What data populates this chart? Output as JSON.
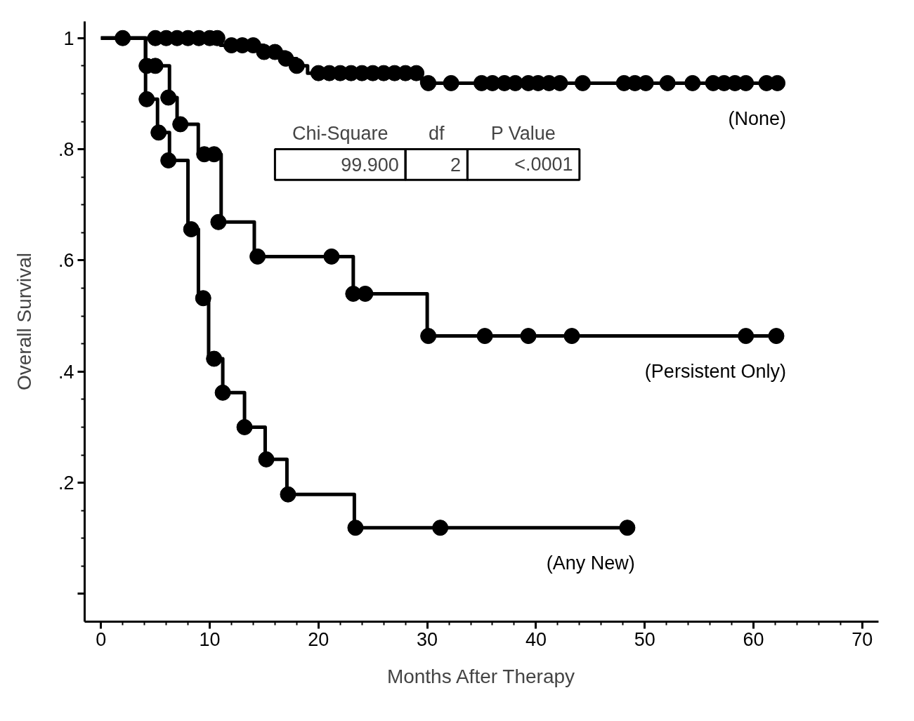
{
  "chart_data": {
    "type": "step",
    "xlabel": "Months After Therapy",
    "ylabel": "Overall Survival",
    "xlim": [
      -1.5,
      71.5
    ],
    "ylim": [
      -0.05,
      1.03
    ],
    "xticks": [
      0,
      10,
      20,
      30,
      40,
      50,
      60,
      70
    ],
    "yticks": [
      {
        "value": 0,
        "label": null
      },
      {
        "value": 0.2,
        "label": ".2"
      },
      {
        "value": 0.4,
        "label": ".4"
      },
      {
        "value": 0.6,
        "label": ".6"
      },
      {
        "value": 0.8,
        "label": ".8"
      },
      1
    ],
    "grid": false,
    "annotations": [
      "Chi-Square",
      "df",
      "P Value",
      "99.900",
      "2",
      "<.0001"
    ],
    "series": [
      {
        "name": "(None)",
        "color": "#000000",
        "x": [
          0,
          11,
          15,
          17,
          18,
          19,
          29.5,
          62.5
        ],
        "values": [
          1,
          0.987,
          0.975,
          0.963,
          0.95,
          0.937,
          0.919,
          0.919
        ]
      },
      {
        "name": "(Persistent Only)",
        "color": "#000000",
        "x": [
          0,
          4.1,
          6.3,
          7.0,
          8.95,
          11.05,
          14.1,
          23.2,
          30.0,
          62.5
        ],
        "values": [
          1,
          0.95,
          0.893,
          0.845,
          0.791,
          0.669,
          0.607,
          0.54,
          0.464,
          0.464
        ]
      },
      {
        "name": "(Any New)",
        "color": "#000000",
        "x": [
          0,
          4.1,
          5.2,
          6.3,
          8.0,
          8.96,
          9.9,
          11.2,
          13.2,
          15.1,
          17.1,
          23.3,
          48.6
        ],
        "values": [
          1,
          0.89,
          0.83,
          0.78,
          0.656,
          0.532,
          0.423,
          0.362,
          0.3,
          0.242,
          0.179,
          0.119,
          0.119
        ]
      },
      {
        "type": "scatter",
        "marker": "circle",
        "color": "#000000",
        "x": [
          2,
          5,
          6,
          7,
          8,
          9,
          10,
          10.7,
          12,
          13,
          14,
          15,
          16,
          17,
          18,
          20,
          21,
          22,
          23,
          24,
          25,
          26,
          27,
          28,
          29,
          30.1,
          32.2,
          35.0,
          36.0,
          37.1,
          38.1,
          39.3,
          40.2,
          41.2,
          42.2,
          44.3,
          48.1,
          49.1,
          50.1,
          52.1,
          54.4,
          56.3,
          57.3,
          58.3,
          59.3,
          61.2,
          62.2
        ],
        "values": [
          1,
          1,
          1,
          1,
          1,
          1,
          1,
          1,
          0.987,
          0.987,
          0.987,
          0.975,
          0.975,
          0.963,
          0.95,
          0.937,
          0.937,
          0.937,
          0.937,
          0.937,
          0.937,
          0.937,
          0.937,
          0.937,
          0.937,
          0.919,
          0.919,
          0.919,
          0.919,
          0.919,
          0.919,
          0.919,
          0.919,
          0.919,
          0.919,
          0.919,
          0.919,
          0.919,
          0.919,
          0.919,
          0.919,
          0.919,
          0.919,
          0.919,
          0.919,
          0.919,
          0.919
        ]
      },
      {
        "type": "scatter",
        "marker": "circle",
        "color": "#000000",
        "x": [
          4.2,
          5.0,
          6.2,
          7.3,
          9.5,
          10.4,
          10.8,
          14.4,
          21.2,
          23.2,
          24.3,
          30.1,
          35.3,
          39.3,
          43.3,
          59.3,
          62.1
        ],
        "values": [
          0.95,
          0.95,
          0.893,
          0.845,
          0.791,
          0.791,
          0.669,
          0.607,
          0.607,
          0.54,
          0.54,
          0.464,
          0.464,
          0.464,
          0.464,
          0.464,
          0.464
        ]
      },
      {
        "type": "scatter",
        "marker": "circle",
        "color": "#000000",
        "x": [
          4.2,
          5.3,
          6.2,
          8.3,
          9.4,
          10.4,
          11.2,
          13.2,
          15.2,
          17.2,
          23.4,
          31.2,
          48.4
        ],
        "values": [
          0.89,
          0.83,
          0.78,
          0.656,
          0.532,
          0.423,
          0.362,
          0.3,
          0.242,
          0.179,
          0.119,
          0.119,
          0.119
        ]
      }
    ]
  }
}
